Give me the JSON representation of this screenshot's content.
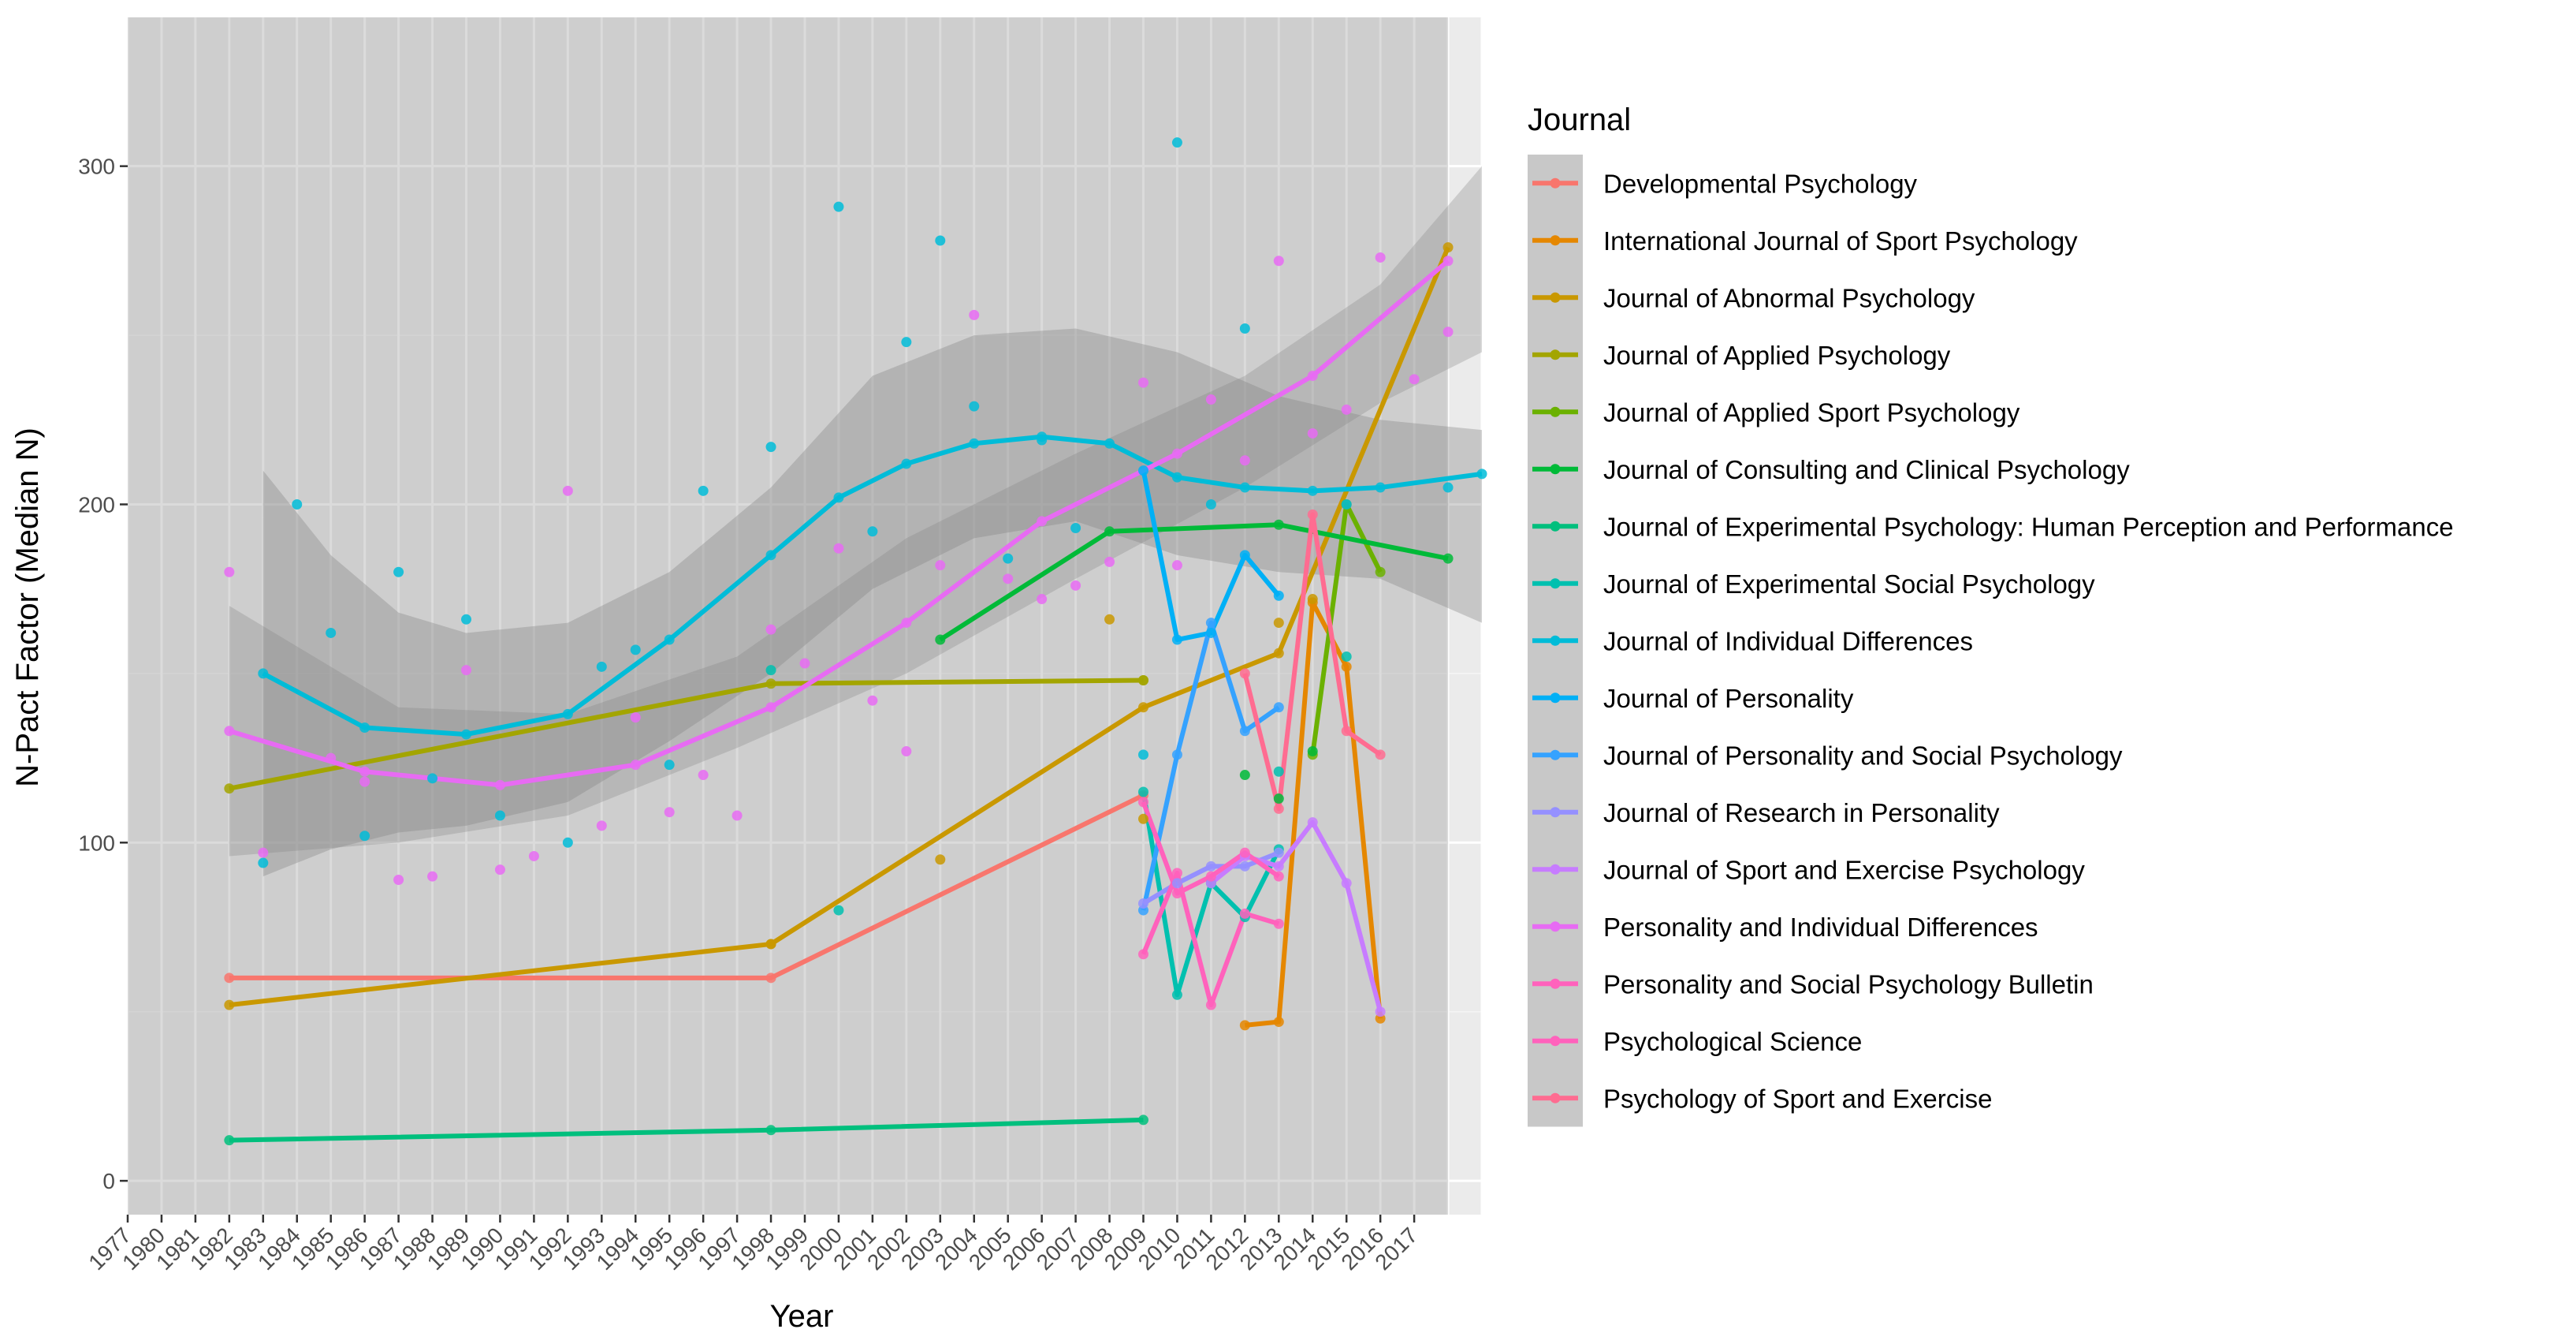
{
  "chart_data": {
    "type": "scatter",
    "xlabel": "Year",
    "ylabel": "N-Pact Factor (Median N)",
    "xlim": [
      1977,
      2017
    ],
    "ylim": [
      0,
      300
    ],
    "x_ticks": [
      "1977",
      "1980",
      "1981",
      "1982",
      "1983",
      "1984",
      "1985",
      "1986",
      "1987",
      "1988",
      "1989",
      "1990",
      "1991",
      "1992",
      "1993",
      "1994",
      "1995",
      "1996",
      "1997",
      "1998",
      "1999",
      "2000",
      "2001",
      "2002",
      "2003",
      "2004",
      "2005",
      "2006",
      "2007",
      "2008",
      "2009",
      "2010",
      "2011",
      "2012",
      "2013",
      "2014",
      "2015",
      "2016",
      "2017"
    ],
    "y_ticks": [
      0,
      100,
      200,
      300
    ],
    "grid": true,
    "legend_title": "Journal",
    "legend_position": "right",
    "series": [
      {
        "name": "Developmental Psychology",
        "color": "#F8766D",
        "kind": "line",
        "points": [
          [
            1980,
            60
          ],
          [
            1996,
            60
          ],
          [
            2007,
            114
          ]
        ]
      },
      {
        "name": "International Journal of Sport Psychology",
        "color": "#E58700",
        "kind": "line",
        "points": [
          [
            2010,
            46
          ],
          [
            2011,
            47
          ],
          [
            2012,
            171
          ],
          [
            2013,
            152
          ],
          [
            2014,
            48
          ]
        ]
      },
      {
        "name": "Journal of Abnormal Psychology",
        "color": "#C99800",
        "kind": "line",
        "points": [
          [
            1980,
            52
          ],
          [
            1996,
            70
          ],
          [
            2007,
            140
          ],
          [
            2011,
            156
          ],
          [
            2016,
            276
          ]
        ],
        "extra_points": [
          [
            2001,
            95
          ],
          [
            2006,
            166
          ],
          [
            2011,
            165
          ],
          [
            1996,
            70
          ],
          [
            2007,
            107
          ],
          [
            2012,
            172
          ]
        ]
      },
      {
        "name": "Journal of Applied Psychology",
        "color": "#A3A500",
        "kind": "line",
        "points": [
          [
            1980,
            116
          ],
          [
            1996,
            147
          ],
          [
            2007,
            148
          ]
        ],
        "extra_points": [
          [
            2007,
            148
          ]
        ]
      },
      {
        "name": "Journal of Applied Sport Psychology",
        "color": "#6BB100",
        "kind": "line",
        "points": [
          [
            2012,
            126
          ],
          [
            2013,
            200
          ],
          [
            2014,
            180
          ]
        ]
      },
      {
        "name": "Journal of Consulting and Clinical Psychology",
        "color": "#00BA38",
        "kind": "line",
        "points": [
          [
            2001,
            160
          ],
          [
            2006,
            192
          ],
          [
            2011,
            194
          ],
          [
            2016,
            184
          ]
        ],
        "extra_points": [
          [
            2010,
            120
          ],
          [
            2011,
            113
          ],
          [
            2012,
            127
          ]
        ]
      },
      {
        "name": "Journal of Experimental Psychology: Human Perception and Performance",
        "color": "#00BF7D",
        "kind": "line",
        "points": [
          [
            1980,
            12
          ],
          [
            1996,
            15
          ],
          [
            2007,
            18
          ]
        ]
      },
      {
        "name": "Journal of Experimental Social Psychology",
        "color": "#00C0AF",
        "kind": "line",
        "points": [
          [
            2007,
            115
          ],
          [
            2008,
            55
          ],
          [
            2009,
            88
          ],
          [
            2010,
            78
          ],
          [
            2011,
            98
          ]
        ],
        "extra_points": [
          [
            1998,
            80
          ],
          [
            1996,
            151
          ],
          [
            2011,
            121
          ],
          [
            2013,
            155
          ]
        ]
      },
      {
        "name": "Journal of Individual Differences",
        "color": "#00BCD8",
        "kind": "line",
        "points": [
          [
            1981,
            150
          ],
          [
            1984,
            134
          ],
          [
            1987,
            132
          ],
          [
            1990,
            138
          ],
          [
            1993,
            160
          ],
          [
            1996,
            185
          ],
          [
            1998,
            202
          ],
          [
            2000,
            212
          ],
          [
            2002,
            218
          ],
          [
            2004,
            220
          ],
          [
            2006,
            218
          ],
          [
            2008,
            208
          ],
          [
            2010,
            205
          ],
          [
            2012,
            204
          ],
          [
            2014,
            205
          ],
          [
            2017,
            209
          ]
        ],
        "extra_points": [
          [
            1981,
            94
          ],
          [
            1982,
            200
          ],
          [
            1983,
            162
          ],
          [
            1984,
            102
          ],
          [
            1985,
            180
          ],
          [
            1986,
            119
          ],
          [
            1987,
            166
          ],
          [
            1988,
            108
          ],
          [
            1990,
            100
          ],
          [
            1991,
            152
          ],
          [
            1992,
            157
          ],
          [
            1993,
            123
          ],
          [
            1994,
            204
          ],
          [
            1996,
            217
          ],
          [
            1998,
            288
          ],
          [
            1999,
            192
          ],
          [
            2000,
            248
          ],
          [
            2001,
            278
          ],
          [
            2002,
            229
          ],
          [
            2003,
            184
          ],
          [
            2004,
            219
          ],
          [
            2005,
            193
          ],
          [
            2007,
            126
          ],
          [
            2008,
            307
          ],
          [
            2009,
            200
          ],
          [
            2010,
            252
          ],
          [
            2013,
            200
          ],
          [
            2016,
            205
          ]
        ]
      },
      {
        "name": "Journal of Personality",
        "color": "#00B0F6",
        "kind": "line",
        "points": [
          [
            2007,
            210
          ],
          [
            2008,
            160
          ],
          [
            2009,
            162
          ],
          [
            2010,
            185
          ],
          [
            2011,
            173
          ]
        ]
      },
      {
        "name": "Journal of Personality and Social Psychology",
        "color": "#35A2FF",
        "kind": "line",
        "points": [
          [
            2007,
            80
          ],
          [
            2008,
            126
          ],
          [
            2009,
            165
          ],
          [
            2010,
            133
          ],
          [
            2011,
            140
          ]
        ]
      },
      {
        "name": "Journal of Research in Personality",
        "color": "#9590FF",
        "kind": "line",
        "points": [
          [
            2007,
            82
          ],
          [
            2008,
            88
          ],
          [
            2009,
            93
          ],
          [
            2010,
            93
          ],
          [
            2011,
            97
          ]
        ]
      },
      {
        "name": "Journal of Sport and Exercise Psychology",
        "color": "#C77CFF",
        "kind": "line",
        "points": [
          [
            2009,
            88
          ],
          [
            2010,
            96
          ],
          [
            2011,
            93
          ],
          [
            2012,
            106
          ],
          [
            2013,
            88
          ],
          [
            2014,
            50
          ]
        ]
      },
      {
        "name": "Personality and Individual Differences",
        "color": "#E76BF3",
        "kind": "line",
        "points": [
          [
            1980,
            133
          ],
          [
            1984,
            121
          ],
          [
            1988,
            117
          ],
          [
            1992,
            123
          ],
          [
            1996,
            140
          ],
          [
            2000,
            165
          ],
          [
            2004,
            195
          ],
          [
            2008,
            215
          ],
          [
            2012,
            238
          ],
          [
            2016,
            272
          ]
        ],
        "extra_points": [
          [
            1980,
            180
          ],
          [
            1981,
            97
          ],
          [
            1983,
            125
          ],
          [
            1984,
            118
          ],
          [
            1985,
            89
          ],
          [
            1986,
            90
          ],
          [
            1987,
            151
          ],
          [
            1988,
            92
          ],
          [
            1989,
            96
          ],
          [
            1990,
            204
          ],
          [
            1991,
            105
          ],
          [
            1992,
            137
          ],
          [
            1993,
            109
          ],
          [
            1994,
            120
          ],
          [
            1995,
            108
          ],
          [
            1996,
            163
          ],
          [
            1997,
            153
          ],
          [
            1998,
            187
          ],
          [
            1999,
            142
          ],
          [
            2000,
            127
          ],
          [
            2001,
            182
          ],
          [
            2002,
            256
          ],
          [
            2003,
            178
          ],
          [
            2004,
            172
          ],
          [
            2005,
            176
          ],
          [
            2006,
            183
          ],
          [
            2007,
            236
          ],
          [
            2008,
            182
          ],
          [
            2009,
            231
          ],
          [
            2010,
            213
          ],
          [
            2011,
            272
          ],
          [
            2012,
            221
          ],
          [
            2013,
            228
          ],
          [
            2014,
            273
          ],
          [
            2015,
            237
          ],
          [
            2016,
            251
          ]
        ]
      },
      {
        "name": "Personality and Social Psychology Bulletin",
        "color": "#FF62BC",
        "kind": "line",
        "points": [
          [
            2007,
            112
          ],
          [
            2008,
            85
          ],
          [
            2009,
            90
          ],
          [
            2010,
            97
          ],
          [
            2011,
            90
          ]
        ]
      },
      {
        "name": "Psychological Science",
        "color": "#FF62BC",
        "kind": "line",
        "points": [
          [
            2007,
            67
          ],
          [
            2008,
            91
          ],
          [
            2009,
            52
          ],
          [
            2010,
            79
          ],
          [
            2011,
            76
          ]
        ]
      },
      {
        "name": "Psychology of Sport and Exercise",
        "color": "#FF6C91",
        "kind": "line",
        "points": [
          [
            2010,
            150
          ],
          [
            2011,
            110
          ],
          [
            2012,
            197
          ],
          [
            2013,
            133
          ],
          [
            2014,
            126
          ]
        ]
      }
    ]
  }
}
